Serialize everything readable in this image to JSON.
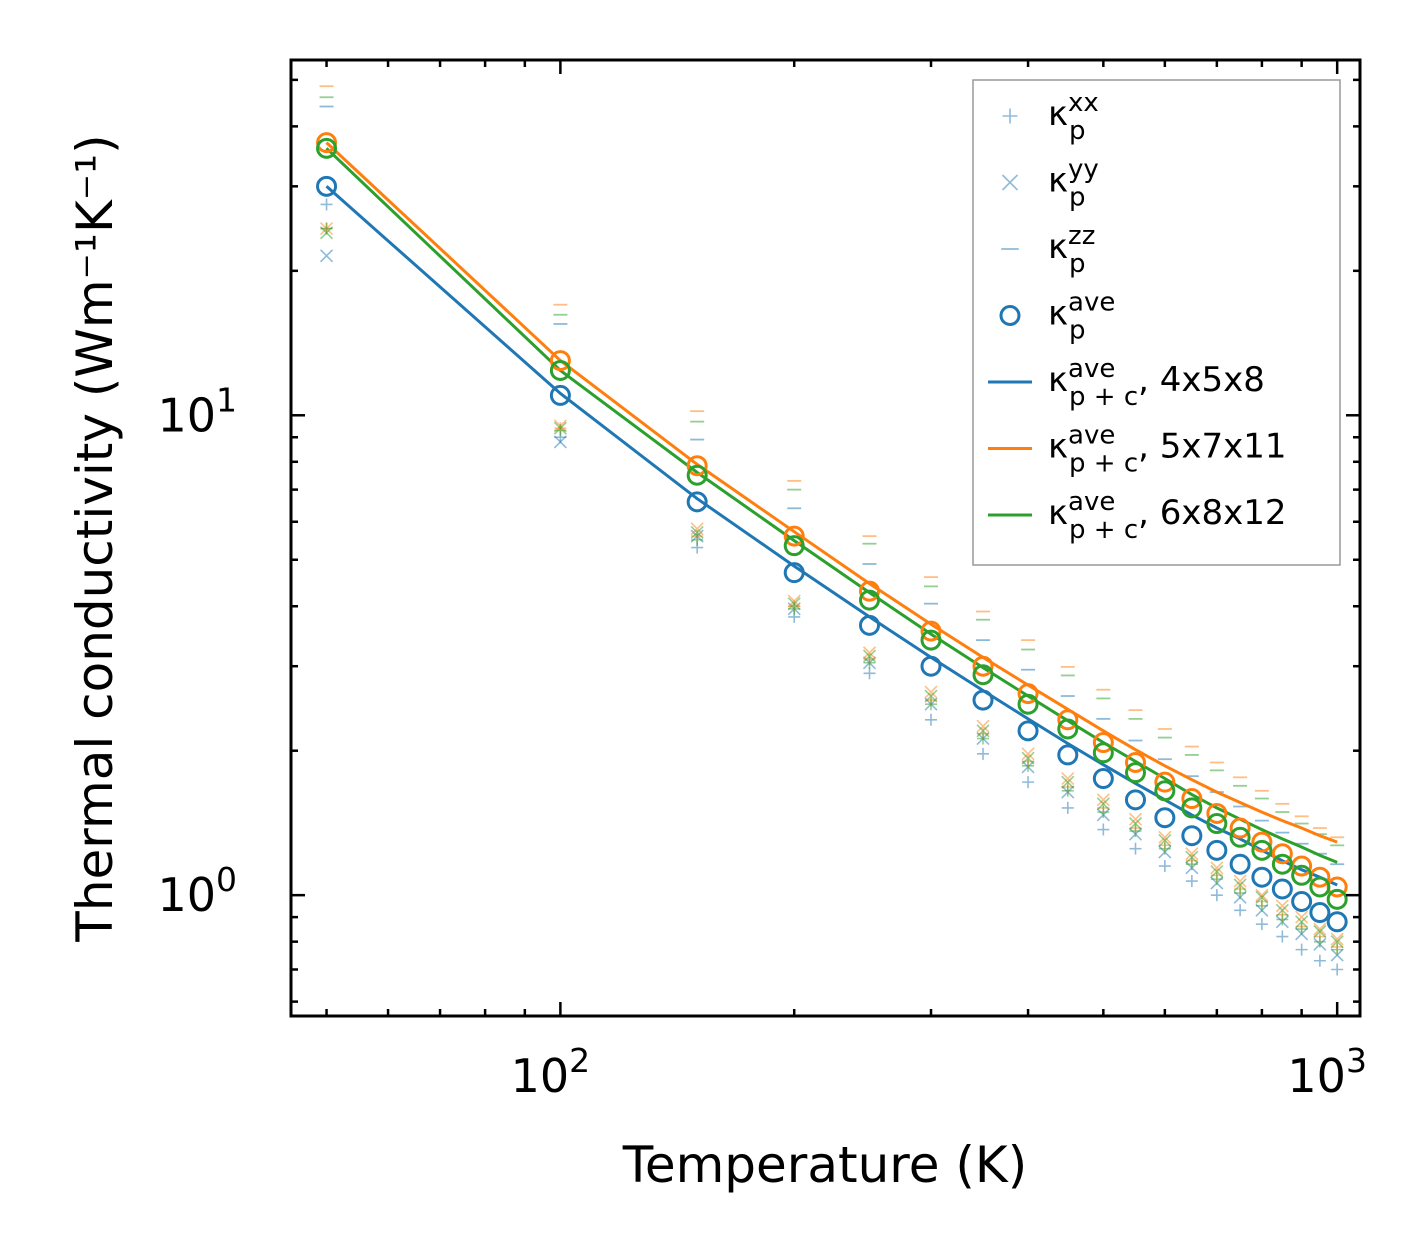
{
  "chart_data": {
    "type": "scatter",
    "xscale": "log",
    "yscale": "log",
    "xlabel": "Temperature (K)",
    "ylabel": "Thermal conductivity (Wm⁻¹K⁻¹)",
    "xlim": [
      45,
      1070
    ],
    "ylim": [
      0.56,
      55
    ],
    "x_ticks": [
      {
        "value": 100,
        "label": "10",
        "exp": "2"
      },
      {
        "value": 1000,
        "label": "10",
        "exp": "3"
      }
    ],
    "y_ticks": [
      {
        "value": 1,
        "label": "10",
        "exp": "0"
      },
      {
        "value": 10,
        "label": "10",
        "exp": "1"
      }
    ],
    "colors": {
      "blue": "#1f77b4",
      "orange": "#ff7f0e",
      "green": "#2ca02c"
    },
    "temperatures": [
      50,
      100,
      150,
      200,
      250,
      300,
      350,
      400,
      450,
      500,
      550,
      600,
      650,
      700,
      750,
      800,
      850,
      900,
      950,
      1000
    ],
    "legend": {
      "placement": "top-right",
      "entries": [
        {
          "key": "xx",
          "marker": "plus",
          "color": "#1f77b4",
          "sym": "κ",
          "sub": "p",
          "sup": "xx",
          "suffix": ""
        },
        {
          "key": "yy",
          "marker": "x",
          "color": "#1f77b4",
          "sym": "κ",
          "sub": "p",
          "sup": "yy",
          "suffix": ""
        },
        {
          "key": "zz",
          "marker": "hline",
          "color": "#1f77b4",
          "sym": "κ",
          "sub": "p",
          "sup": "zz",
          "suffix": ""
        },
        {
          "key": "ave",
          "marker": "circle",
          "color": "#1f77b4",
          "sym": "κ",
          "sub": "p",
          "sup": "ave",
          "suffix": ""
        },
        {
          "key": "line_458",
          "marker": "line",
          "color": "#1f77b4",
          "sym": "κ",
          "sub": "p + c",
          "sup": "ave",
          "suffix": ", 4x5x8"
        },
        {
          "key": "line_5711",
          "marker": "line",
          "color": "#ff7f0e",
          "sym": "κ",
          "sub": "p + c",
          "sup": "ave",
          "suffix": ", 5x7x11"
        },
        {
          "key": "line_6812",
          "marker": "line",
          "color": "#2ca02c",
          "sym": "κ",
          "sub": "p + c",
          "sup": "ave",
          "suffix": ", 6x8x12"
        }
      ]
    },
    "series": [
      {
        "name": "4x5x8",
        "color": "#1f77b4",
        "kp_xx": [
          27.5,
          9.0,
          5.3,
          3.8,
          2.9,
          2.32,
          1.97,
          1.72,
          1.52,
          1.37,
          1.25,
          1.15,
          1.07,
          1.0,
          0.93,
          0.87,
          0.82,
          0.77,
          0.73,
          0.7
        ],
        "kp_yy": [
          21.5,
          8.8,
          5.6,
          3.95,
          3.05,
          2.5,
          2.12,
          1.85,
          1.64,
          1.47,
          1.34,
          1.23,
          1.14,
          1.06,
          0.99,
          0.93,
          0.88,
          0.83,
          0.79,
          0.75
        ],
        "kp_zz": [
          44.0,
          15.5,
          8.9,
          6.4,
          4.9,
          4.05,
          3.4,
          2.95,
          2.6,
          2.33,
          2.1,
          1.92,
          1.77,
          1.64,
          1.53,
          1.43,
          1.35,
          1.28,
          1.22,
          1.16
        ],
        "kp_ave": [
          30.0,
          11.0,
          6.6,
          4.7,
          3.65,
          3.0,
          2.55,
          2.2,
          1.96,
          1.75,
          1.58,
          1.45,
          1.33,
          1.24,
          1.16,
          1.09,
          1.03,
          0.97,
          0.92,
          0.88
        ],
        "kpc_ave": [
          30.0,
          11.1,
          6.7,
          4.85,
          3.8,
          3.13,
          2.67,
          2.33,
          2.07,
          1.87,
          1.71,
          1.58,
          1.47,
          1.38,
          1.31,
          1.24,
          1.18,
          1.13,
          1.09,
          1.05
        ]
      },
      {
        "name": "5x7x11",
        "color": "#ff7f0e",
        "kp_xx": [
          24.5,
          9.4,
          5.6,
          4.0,
          3.1,
          2.55,
          2.17,
          1.9,
          1.68,
          1.52,
          1.38,
          1.27,
          1.18,
          1.1,
          1.03,
          0.97,
          0.91,
          0.86,
          0.82,
          0.78
        ],
        "kp_yy": [
          24.5,
          9.5,
          5.8,
          4.1,
          3.2,
          2.65,
          2.25,
          1.97,
          1.75,
          1.58,
          1.44,
          1.32,
          1.22,
          1.14,
          1.07,
          1.0,
          0.95,
          0.9,
          0.85,
          0.81
        ],
        "kp_zz": [
          48.5,
          17.0,
          10.2,
          7.3,
          5.6,
          4.6,
          3.9,
          3.4,
          2.99,
          2.68,
          2.43,
          2.22,
          2.04,
          1.89,
          1.76,
          1.65,
          1.55,
          1.46,
          1.38,
          1.32
        ],
        "kp_ave": [
          37.0,
          13.0,
          7.85,
          5.6,
          4.3,
          3.55,
          3.0,
          2.63,
          2.32,
          2.08,
          1.89,
          1.72,
          1.59,
          1.48,
          1.38,
          1.29,
          1.22,
          1.15,
          1.09,
          1.04
        ],
        "kpc_ave": [
          37.0,
          13.0,
          7.9,
          5.72,
          4.46,
          3.67,
          3.13,
          2.74,
          2.44,
          2.2,
          2.01,
          1.86,
          1.74,
          1.64,
          1.56,
          1.49,
          1.43,
          1.38,
          1.33,
          1.29
        ]
      },
      {
        "name": "6x8x12",
        "color": "#2ca02c",
        "kp_xx": [
          24.5,
          9.3,
          5.5,
          3.95,
          3.05,
          2.5,
          2.12,
          1.86,
          1.65,
          1.49,
          1.36,
          1.25,
          1.16,
          1.08,
          1.01,
          0.95,
          0.89,
          0.85,
          0.8,
          0.77
        ],
        "kp_yy": [
          24.0,
          9.4,
          5.7,
          4.05,
          3.15,
          2.6,
          2.2,
          1.93,
          1.72,
          1.55,
          1.41,
          1.3,
          1.2,
          1.12,
          1.05,
          0.99,
          0.93,
          0.88,
          0.84,
          0.8
        ],
        "kp_zz": [
          46.0,
          16.2,
          9.7,
          7.0,
          5.4,
          4.4,
          3.75,
          3.25,
          2.87,
          2.57,
          2.33,
          2.13,
          1.96,
          1.82,
          1.69,
          1.59,
          1.49,
          1.41,
          1.34,
          1.27
        ],
        "kp_ave": [
          36.0,
          12.4,
          7.5,
          5.35,
          4.12,
          3.4,
          2.88,
          2.5,
          2.22,
          1.98,
          1.8,
          1.65,
          1.52,
          1.41,
          1.32,
          1.24,
          1.16,
          1.1,
          1.04,
          0.98
        ],
        "kpc_ave": [
          36.0,
          12.4,
          7.6,
          5.48,
          4.27,
          3.5,
          2.98,
          2.6,
          2.31,
          2.08,
          1.9,
          1.75,
          1.62,
          1.52,
          1.44,
          1.37,
          1.31,
          1.26,
          1.21,
          1.17
        ]
      }
    ]
  }
}
